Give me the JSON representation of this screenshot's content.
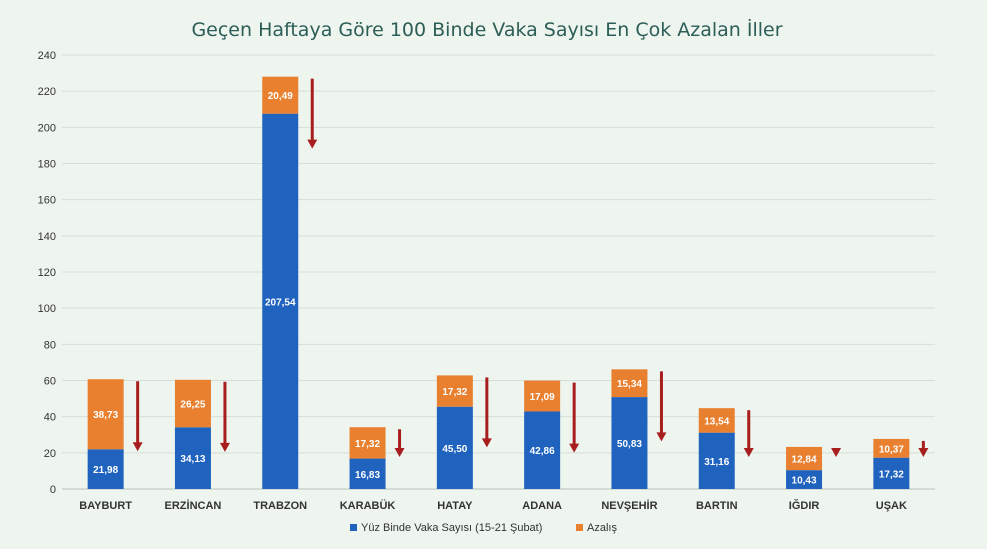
{
  "chart_data": {
    "type": "bar",
    "stacked": true,
    "title": "Geçen Haftaya Göre 100 Binde Vaka Sayısı En Çok Azalan İller",
    "categories": [
      "BAYBURT",
      "ERZİNCAN",
      "TRABZON",
      "KARABÜK",
      "HATAY",
      "ADANA",
      "NEVŞEHİR",
      "BARTIN",
      "IĞDIR",
      "UŞAK"
    ],
    "series": [
      {
        "name": "Yüz Binde Vaka Sayısı (15-21 Şubat)",
        "color": "#1f63bf",
        "values": [
          21.98,
          34.13,
          207.54,
          16.83,
          45.5,
          42.86,
          50.83,
          31.16,
          10.43,
          17.32
        ],
        "labels": [
          "21,98",
          "34,13",
          "207,54",
          "16,83",
          "45,50",
          "42,86",
          "50,83",
          "31,16",
          "10,43",
          "17,32"
        ]
      },
      {
        "name": "Azalış",
        "color": "#e8802f",
        "values": [
          38.73,
          26.25,
          20.49,
          17.32,
          17.32,
          17.09,
          15.34,
          13.54,
          12.84,
          10.37
        ],
        "labels": [
          "38,73",
          "26,25",
          "20,49",
          "17,32",
          "17,32",
          "17,09",
          "15,34",
          "13,54",
          "12,84",
          "10,37"
        ]
      }
    ],
    "ylim": [
      0,
      240
    ],
    "yticks": [
      0,
      20,
      40,
      60,
      80,
      100,
      120,
      140,
      160,
      180,
      200,
      220,
      240
    ],
    "grid": true,
    "legend_position": "bottom-center",
    "annotation": "down-arrow beside each bar",
    "arrow_color": "#a81e1e",
    "xlabel": "",
    "ylabel": ""
  }
}
